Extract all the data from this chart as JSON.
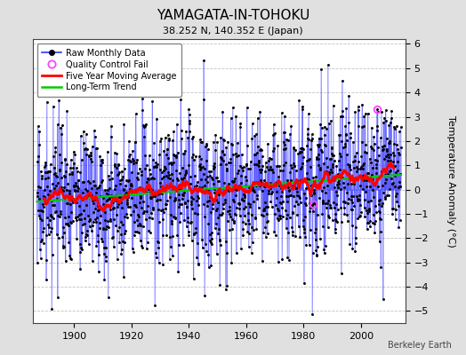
{
  "title": "YAMAGATA-IN-TOHOKU",
  "subtitle": "38.252 N, 140.352 E (Japan)",
  "ylabel": "Temperature Anomaly (°C)",
  "credit": "Berkeley Earth",
  "year_start": 1887,
  "year_end": 2013,
  "ylim": [
    -5.5,
    6.2
  ],
  "yticks": [
    -5,
    -4,
    -3,
    -2,
    -1,
    0,
    1,
    2,
    3,
    4,
    5,
    6
  ],
  "xticks": [
    1900,
    1920,
    1940,
    1960,
    1980,
    2000
  ],
  "background_color": "#e0e0e0",
  "plot_bg_color": "#ffffff",
  "line_color": "#3333ff",
  "marker_color": "#000000",
  "ma_color": "#ff0000",
  "trend_color": "#00cc00",
  "qc_color": "#ff44ff",
  "grid_color": "#bbbbbb",
  "noise_std": 1.45,
  "trend_slope": 0.008,
  "ma_window": 60,
  "seed": 17
}
